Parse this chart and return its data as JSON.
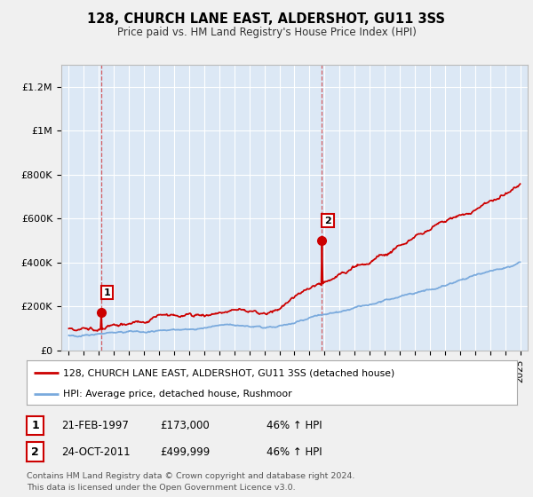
{
  "title": "128, CHURCH LANE EAST, ALDERSHOT, GU11 3SS",
  "subtitle": "Price paid vs. HM Land Registry's House Price Index (HPI)",
  "ylim": [
    0,
    1300000
  ],
  "xlim": [
    1994.5,
    2025.5
  ],
  "fig_bg_color": "#f0f0f0",
  "plot_bg_color": "#dce8f5",
  "grid_color": "#ffffff",
  "red_line_color": "#cc0000",
  "blue_line_color": "#7aaadd",
  "dashed_line_color": "#cc0000",
  "marker1_x": 1997.14,
  "marker1_y": 173000,
  "marker1_label": "1",
  "marker2_x": 2011.81,
  "marker2_y": 499999,
  "marker2_label": "2",
  "legend_line1": "128, CHURCH LANE EAST, ALDERSHOT, GU11 3SS (detached house)",
  "legend_line2": "HPI: Average price, detached house, Rushmoor",
  "table_row1": [
    "1",
    "21-FEB-1997",
    "£173,000",
    "46% ↑ HPI"
  ],
  "table_row2": [
    "2",
    "24-OCT-2011",
    "£499,999",
    "46% ↑ HPI"
  ],
  "footer": "Contains HM Land Registry data © Crown copyright and database right 2024.\nThis data is licensed under the Open Government Licence v3.0.",
  "yticks": [
    0,
    200000,
    400000,
    600000,
    800000,
    1000000,
    1200000
  ],
  "ytick_labels": [
    "£0",
    "£200K",
    "£400K",
    "£600K",
    "£800K",
    "£1M",
    "£1.2M"
  ]
}
